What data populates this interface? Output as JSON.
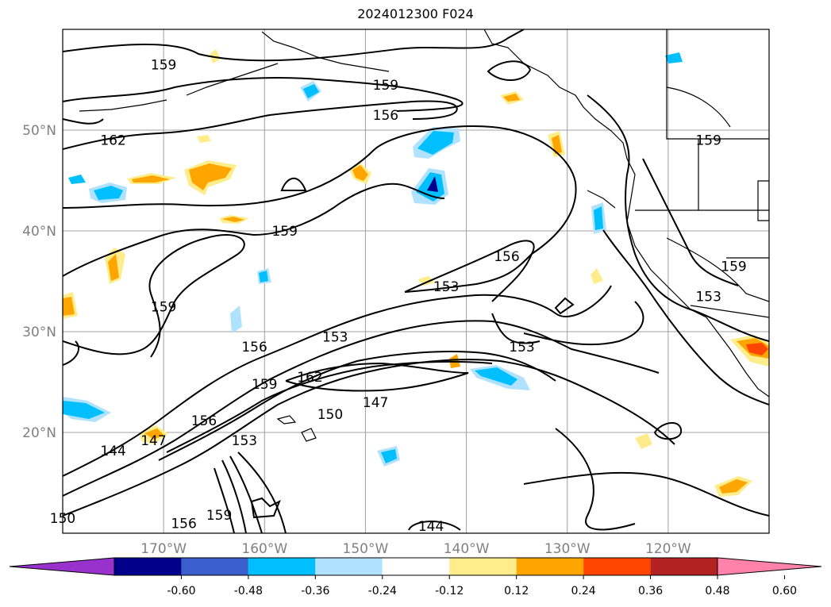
{
  "title": "2024012300 F024",
  "map": {
    "lon_range": [
      -180,
      -110
    ],
    "lat_range": [
      10,
      60
    ],
    "lat_ticks": [
      {
        "value": 20,
        "label": "20°N"
      },
      {
        "value": 30,
        "label": "30°N"
      },
      {
        "value": 40,
        "label": "40°N"
      },
      {
        "value": 50,
        "label": "50°N"
      }
    ],
    "lon_ticks": [
      {
        "value": -170,
        "label": "170°W"
      },
      {
        "value": -160,
        "label": "160°W"
      },
      {
        "value": -150,
        "label": "150°W"
      },
      {
        "value": -140,
        "label": "140°W"
      },
      {
        "value": -130,
        "label": "130°W"
      },
      {
        "value": -120,
        "label": "120°W"
      }
    ],
    "grid": true,
    "grid_color": "#a0a0a0"
  },
  "contour_labels": [
    {
      "text": "159",
      "lon": -170,
      "lat": 56.5
    },
    {
      "text": "159",
      "lon": -148,
      "lat": 54.5
    },
    {
      "text": "156",
      "lon": -148,
      "lat": 51.5
    },
    {
      "text": "162",
      "lon": -175,
      "lat": 49
    },
    {
      "text": "159",
      "lon": -116,
      "lat": 49
    },
    {
      "text": "159",
      "lon": -158,
      "lat": 40
    },
    {
      "text": "156",
      "lon": -136,
      "lat": 37.5
    },
    {
      "text": "159",
      "lon": -113.5,
      "lat": 36.5
    },
    {
      "text": "153",
      "lon": -142,
      "lat": 34.5
    },
    {
      "text": "153",
      "lon": -116,
      "lat": 33.5
    },
    {
      "text": "159",
      "lon": -170,
      "lat": 32.5
    },
    {
      "text": "153",
      "lon": -153,
      "lat": 29.5
    },
    {
      "text": "156",
      "lon": -161,
      "lat": 28.5
    },
    {
      "text": "153",
      "lon": -134.5,
      "lat": 28.5
    },
    {
      "text": "162",
      "lon": -155.5,
      "lat": 25.5
    },
    {
      "text": "159",
      "lon": -160,
      "lat": 24.8
    },
    {
      "text": "147",
      "lon": -149,
      "lat": 23
    },
    {
      "text": "150",
      "lon": -153.5,
      "lat": 21.8
    },
    {
      "text": "156",
      "lon": -166,
      "lat": 21.2
    },
    {
      "text": "153",
      "lon": -162,
      "lat": 19.2
    },
    {
      "text": "147",
      "lon": -171,
      "lat": 19.2
    },
    {
      "text": "144",
      "lon": -175,
      "lat": 18.2
    },
    {
      "text": "144",
      "lon": -143.5,
      "lat": 10.7
    },
    {
      "text": "150",
      "lon": -180,
      "lat": 11.5
    },
    {
      "text": "156",
      "lon": -168,
      "lat": 11
    },
    {
      "text": "159",
      "lon": -164.5,
      "lat": 11.8
    }
  ],
  "colorbar": {
    "ticks": [
      "-0.60",
      "-0.48",
      "-0.36",
      "-0.24",
      "-0.12",
      "0.12",
      "0.24",
      "0.36",
      "0.48",
      "0.60"
    ],
    "colors": [
      "#9932cc",
      "#00008b",
      "#3a5fcd",
      "#00bfff",
      "#b0e2ff",
      "#ffffff",
      "#ffec8b",
      "#ffa500",
      "#ff4500",
      "#b22222",
      "#ff82ab"
    ]
  }
}
